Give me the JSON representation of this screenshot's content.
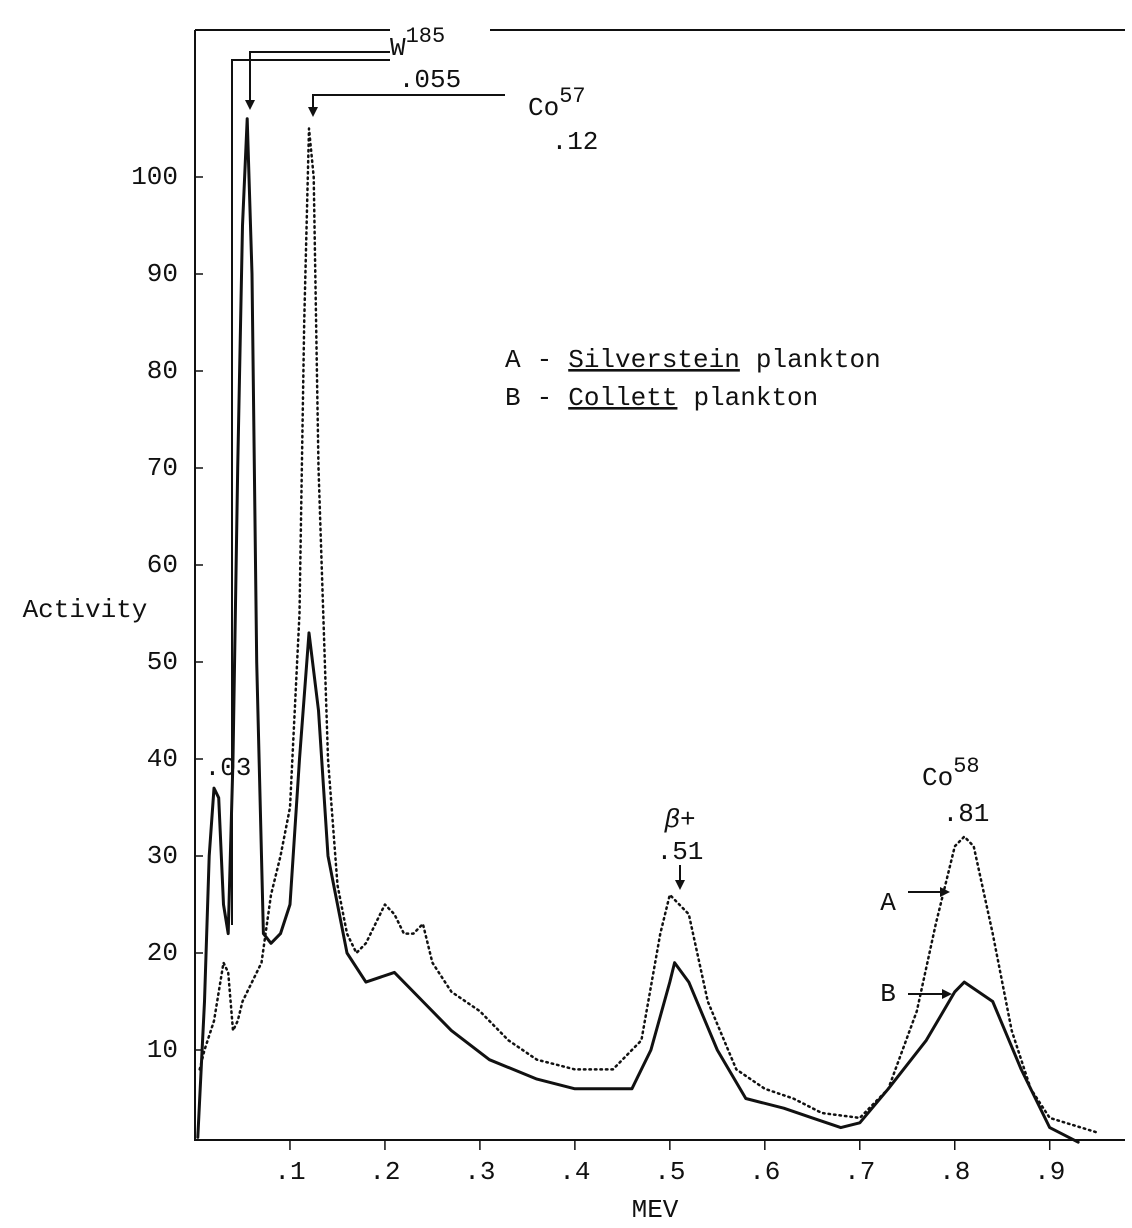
{
  "chart_data": {
    "type": "line",
    "x_label": "MEV",
    "y_label": "Activity",
    "xlim": [
      0,
      0.974
    ],
    "ylim": [
      0,
      115
    ],
    "xticks": [
      {
        "value": 0.1,
        "label": ".1"
      },
      {
        "value": 0.2,
        "label": ".2"
      },
      {
        "value": 0.3,
        "label": ".3"
      },
      {
        "value": 0.4,
        "label": ".4"
      },
      {
        "value": 0.5,
        "label": ".5"
      },
      {
        "value": 0.6,
        "label": ".6"
      },
      {
        "value": 0.7,
        "label": ".7"
      },
      {
        "value": 0.8,
        "label": ".8"
      },
      {
        "value": 0.9,
        "label": ".9"
      }
    ],
    "yticks": [
      10,
      20,
      30,
      40,
      50,
      60,
      70,
      80,
      90,
      100
    ],
    "legend_separator": "-",
    "series": [
      {
        "key": "A",
        "name_underlined": "Silverstein",
        "name_rest": "plankton",
        "style": "dotted",
        "color": "#111111",
        "x": [
          0.005,
          0.01,
          0.02,
          0.03,
          0.035,
          0.04,
          0.045,
          0.05,
          0.06,
          0.07,
          0.08,
          0.09,
          0.1,
          0.11,
          0.115,
          0.12,
          0.125,
          0.13,
          0.14,
          0.15,
          0.16,
          0.17,
          0.18,
          0.19,
          0.2,
          0.21,
          0.22,
          0.23,
          0.24,
          0.25,
          0.27,
          0.3,
          0.33,
          0.36,
          0.4,
          0.44,
          0.47,
          0.49,
          0.5,
          0.52,
          0.54,
          0.57,
          0.6,
          0.63,
          0.66,
          0.7,
          0.73,
          0.76,
          0.78,
          0.8,
          0.81,
          0.82,
          0.84,
          0.86,
          0.88,
          0.9,
          0.95
        ],
        "values": [
          8,
          10,
          13,
          19,
          18,
          12,
          13,
          15,
          17,
          19,
          26,
          30,
          35,
          55,
          85,
          105,
          100,
          70,
          40,
          27,
          22,
          20,
          21,
          23,
          25,
          24,
          22,
          22,
          23,
          19,
          16,
          14,
          11,
          9,
          8,
          8,
          11,
          22,
          26,
          24,
          15,
          8,
          6,
          5,
          3.5,
          3,
          6,
          14,
          23,
          31,
          32,
          31,
          22,
          12,
          6,
          3,
          1.5
        ]
      },
      {
        "key": "B",
        "name_underlined": "Collett",
        "name_rest": "plankton",
        "style": "solid",
        "color": "#111111",
        "x": [
          0.003,
          0.01,
          0.015,
          0.02,
          0.025,
          0.03,
          0.035,
          0.04,
          0.045,
          0.05,
          0.055,
          0.06,
          0.065,
          0.072,
          0.08,
          0.09,
          0.1,
          0.11,
          0.12,
          0.13,
          0.14,
          0.16,
          0.18,
          0.21,
          0.24,
          0.27,
          0.31,
          0.36,
          0.4,
          0.46,
          0.48,
          0.5,
          0.505,
          0.52,
          0.55,
          0.58,
          0.62,
          0.65,
          0.68,
          0.7,
          0.73,
          0.77,
          0.8,
          0.81,
          0.84,
          0.87,
          0.9,
          0.93
        ],
        "values": [
          1,
          15,
          30,
          37,
          36,
          25,
          22,
          40,
          70,
          95,
          106,
          90,
          50,
          22,
          21,
          22,
          25,
          40,
          53,
          45,
          30,
          20,
          17,
          18,
          15,
          12,
          9,
          7,
          6,
          6,
          10,
          17,
          19,
          17,
          10,
          5,
          4,
          3,
          2,
          2.5,
          6,
          11,
          16,
          17,
          15,
          8,
          2,
          0.5
        ]
      }
    ],
    "annotations": [
      {
        "element": "W",
        "mass": "185",
        "energy": ".055"
      },
      {
        "element": "Co",
        "mass": "57",
        "energy": ".12"
      },
      {
        "energy": ".03"
      },
      {
        "particle": "β+",
        "energy": ".51"
      },
      {
        "element": "Co",
        "mass": "58",
        "energy": ".81"
      }
    ]
  }
}
